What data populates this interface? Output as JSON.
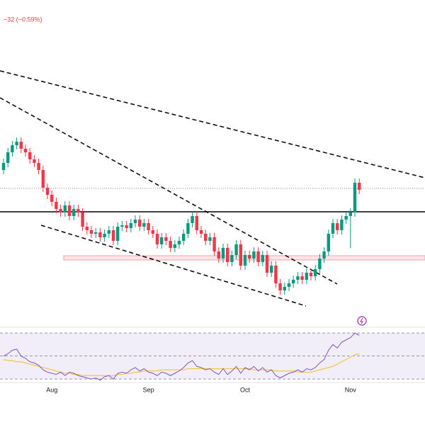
{
  "chart_data": {
    "type": "candlestick",
    "subtitle": "−32 (−0.59%)",
    "categories": [
      null,
      null,
      null,
      null,
      null,
      null,
      null,
      null,
      null,
      null,
      null,
      "Aug",
      null,
      null,
      null,
      null,
      null,
      null,
      null,
      null,
      null,
      null,
      null,
      null,
      null,
      null,
      null,
      null,
      null,
      null,
      null,
      null,
      null,
      "Sep",
      null,
      null,
      null,
      null,
      null,
      null,
      null,
      null,
      null,
      null,
      null,
      null,
      null,
      null,
      null,
      null,
      null,
      null,
      null,
      null,
      null,
      "Oct",
      null,
      null,
      null,
      null,
      null,
      null,
      null,
      null,
      null,
      null,
      null,
      null,
      null,
      null,
      null,
      null,
      null,
      null,
      null,
      null,
      null,
      null,
      null,
      "Nov",
      null,
      null
    ],
    "open": [
      360,
      370,
      385,
      395,
      400,
      390,
      385,
      375,
      370,
      360,
      335,
      325,
      315,
      305,
      300,
      310,
      295,
      305,
      300,
      280,
      275,
      270,
      272,
      265,
      270,
      275,
      260,
      280,
      282,
      278,
      285,
      290,
      280,
      285,
      275,
      270,
      255,
      265,
      260,
      250,
      255,
      260,
      270,
      285,
      295,
      275,
      270,
      260,
      265,
      245,
      235,
      250,
      230,
      240,
      255,
      225,
      240,
      235,
      245,
      230,
      240,
      215,
      225,
      200,
      190,
      195,
      200,
      205,
      210,
      205,
      215,
      210,
      220,
      235,
      245,
      270,
      285,
      275,
      290,
      295,
      300,
      342
    ],
    "high": [
      376,
      391,
      401,
      406,
      406,
      396,
      391,
      381,
      376,
      366,
      341,
      331,
      321,
      311,
      316,
      316,
      311,
      311,
      306,
      286,
      281,
      278,
      278,
      276,
      281,
      281,
      286,
      288,
      288,
      291,
      296,
      296,
      291,
      291,
      281,
      276,
      271,
      271,
      266,
      261,
      266,
      276,
      291,
      301,
      301,
      281,
      276,
      271,
      271,
      251,
      256,
      256,
      246,
      261,
      261,
      246,
      246,
      251,
      251,
      246,
      246,
      231,
      231,
      206,
      201,
      206,
      211,
      216,
      216,
      221,
      221,
      226,
      241,
      251,
      276,
      291,
      291,
      296,
      301,
      306,
      348,
      348
    ],
    "low": [
      354,
      364,
      379,
      389,
      384,
      379,
      369,
      364,
      354,
      329,
      319,
      309,
      299,
      294,
      294,
      289,
      289,
      294,
      274,
      269,
      264,
      264,
      259,
      259,
      264,
      254,
      254,
      274,
      272,
      272,
      279,
      274,
      274,
      269,
      264,
      249,
      249,
      254,
      244,
      244,
      249,
      254,
      264,
      279,
      269,
      264,
      254,
      254,
      239,
      229,
      229,
      224,
      224,
      234,
      219,
      219,
      229,
      229,
      224,
      224,
      209,
      209,
      194,
      184,
      184,
      189,
      194,
      199,
      199,
      199,
      204,
      204,
      214,
      229,
      239,
      264,
      269,
      269,
      284,
      250,
      294,
      326
    ],
    "close": [
      370,
      385,
      395,
      400,
      390,
      385,
      375,
      370,
      360,
      335,
      325,
      315,
      305,
      300,
      310,
      295,
      305,
      300,
      280,
      275,
      270,
      272,
      265,
      270,
      275,
      260,
      280,
      282,
      278,
      285,
      290,
      280,
      285,
      275,
      270,
      255,
      265,
      260,
      250,
      255,
      260,
      270,
      285,
      295,
      275,
      270,
      260,
      265,
      245,
      235,
      250,
      230,
      240,
      255,
      225,
      240,
      235,
      245,
      230,
      240,
      215,
      225,
      200,
      190,
      195,
      200,
      205,
      210,
      205,
      215,
      210,
      220,
      235,
      245,
      270,
      285,
      275,
      290,
      295,
      300,
      342,
      332
    ],
    "up_color": "#089981",
    "down_color": "#f23645",
    "ylim": [
      140,
      600
    ],
    "rsi": {
      "color": "#7e57c2",
      "ma_color": "#f7c548",
      "values": [
        50,
        52,
        55,
        56,
        50,
        48,
        45,
        44,
        42,
        38,
        36,
        35,
        34,
        36,
        33,
        36,
        35,
        33,
        32,
        31,
        30,
        31,
        29,
        32,
        33,
        30,
        35,
        36,
        35,
        38,
        40,
        37,
        39,
        36,
        35,
        33,
        36,
        35,
        33,
        35,
        37,
        40,
        44,
        46,
        41,
        40,
        38,
        39,
        36,
        34,
        39,
        34,
        37,
        41,
        35,
        40,
        38,
        41,
        37,
        40,
        36,
        38,
        33,
        31,
        33,
        35,
        36,
        38,
        36,
        39,
        38,
        40,
        44,
        47,
        55,
        60,
        57,
        62,
        64,
        66,
        70,
        68
      ],
      "ma": [
        47,
        46,
        46,
        45,
        45,
        44,
        43,
        42,
        41,
        40,
        39,
        38,
        37,
        36,
        35,
        35,
        34,
        34,
        33,
        33,
        33,
        33,
        33,
        33,
        33,
        33,
        34,
        34,
        35,
        35,
        36,
        36,
        37,
        37,
        37,
        37,
        38,
        38,
        38,
        38,
        38,
        38,
        39,
        39,
        39,
        39,
        39,
        39,
        39,
        39,
        39,
        39,
        39,
        39,
        39,
        39,
        39,
        38,
        38,
        38,
        38,
        38,
        37,
        37,
        37,
        37,
        37,
        36,
        36,
        36,
        36,
        37,
        38,
        39,
        40,
        41,
        43,
        45,
        47,
        49,
        51,
        52
      ],
      "ylim": [
        27,
        75
      ],
      "yticks": [
        30,
        50,
        70
      ]
    }
  }
}
